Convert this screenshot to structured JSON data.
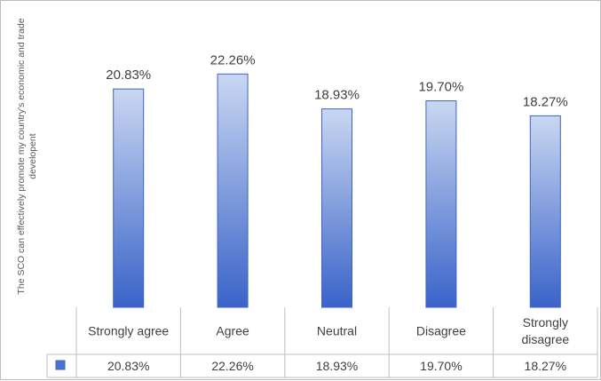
{
  "chart_data": {
    "type": "bar",
    "categories": [
      "Strongly agree",
      "Agree",
      "Neutral",
      "Disagree",
      "Strongly disagree"
    ],
    "values": [
      20.83,
      22.26,
      18.93,
      19.7,
      18.27
    ],
    "data_labels": [
      "20.83%",
      "22.26%",
      "18.93%",
      "19.70%",
      "18.27%"
    ],
    "table_values": [
      "20.83%",
      "22.26%",
      "18.93%",
      "19.70%",
      "18.27%"
    ],
    "ylabel": "The SCO can effectively promote my country's economic and trade developent",
    "xlabel": "",
    "title": "",
    "ylim": [
      0,
      25
    ],
    "grid": false,
    "data_table": true,
    "colors": {
      "bar_top": "#c9d7f1",
      "bar_bottom": "#3a63c9",
      "bar_border": "#3f64c4",
      "legend_key": "#4a72cf",
      "table_border": "#bfbfbf",
      "label_text": "#404040",
      "axis_text": "#595959"
    }
  }
}
